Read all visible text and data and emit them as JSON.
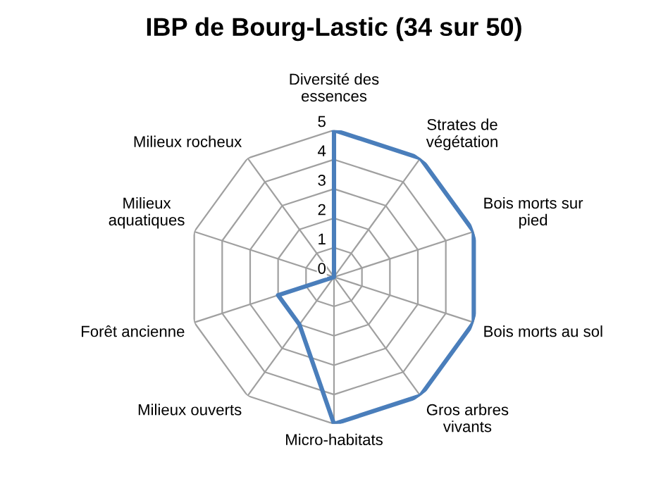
{
  "chart_data": {
    "type": "radar",
    "title": "IBP de Bourg-Lastic (34 sur 50)",
    "categories": [
      "Diversité des\nessences",
      "Strates de\nvégétation",
      "Bois morts sur\npied",
      "Bois morts au sol",
      "Gros arbres\nvivants",
      "Micro-habitats",
      "Milieux ouverts",
      "Forêt ancienne",
      "Milieux\naquatiques",
      "Milieux rocheux"
    ],
    "series": [
      {
        "color": "#4a7ebb",
        "values": [
          5,
          5,
          5,
          5,
          5,
          5,
          2,
          2,
          0,
          0
        ]
      }
    ],
    "ylim": [
      0,
      5
    ],
    "yticks": [
      0,
      1,
      2,
      3,
      4,
      5
    ],
    "grid": true,
    "marker": "none",
    "line_style": "solid"
  }
}
